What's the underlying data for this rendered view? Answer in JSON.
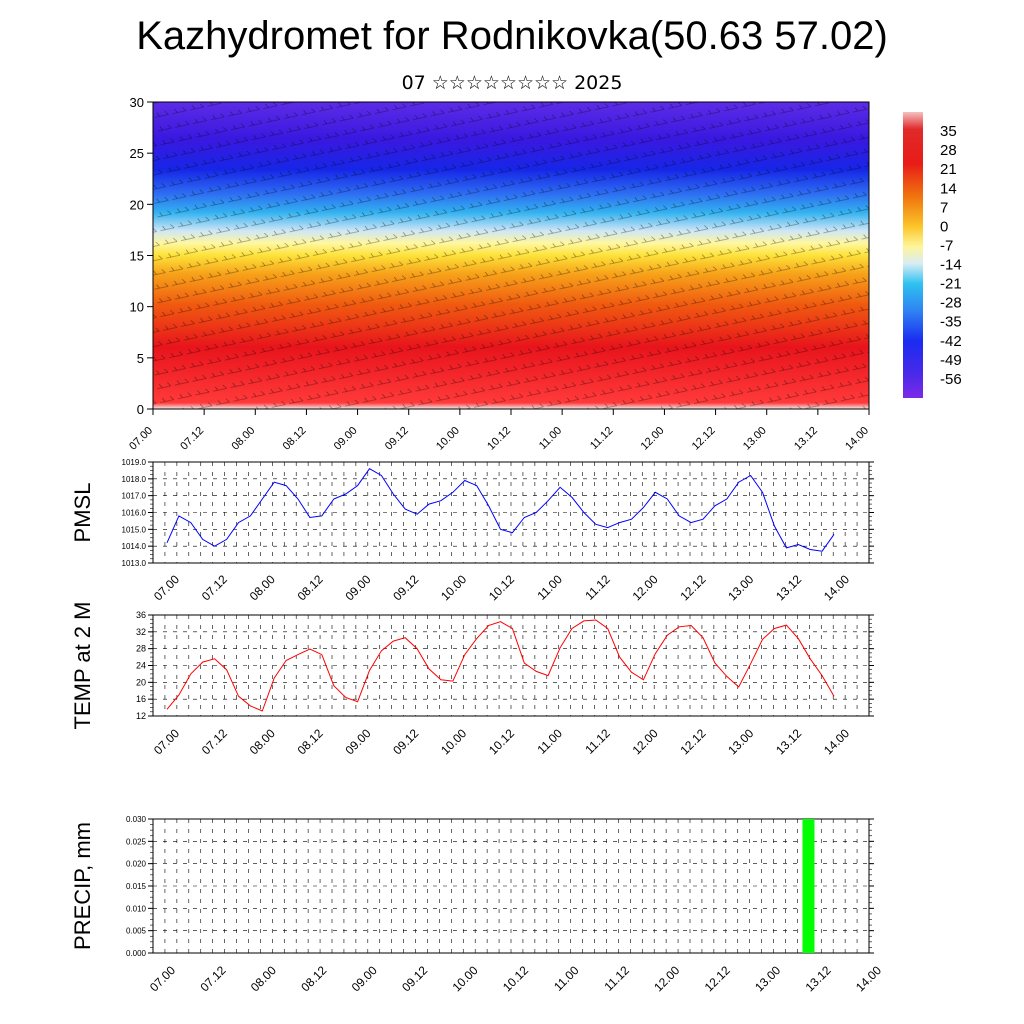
{
  "header": {
    "title": "Kazhydromet for Rodnikovka(50.63 57.02)",
    "subtitle": "07 ☆☆☆☆☆☆☆☆ 2025"
  },
  "colors": {
    "pmsl_line": "#0000ff",
    "temp_line": "#ff0000",
    "precip_bar": "#00ff00",
    "section_warm": "#e8141c",
    "section_cold": "#2b17e6"
  },
  "chart_data": [
    {
      "type": "heatmap",
      "title": "",
      "ylim": [
        0,
        30
      ],
      "yticks": [
        "0",
        "5",
        "10",
        "15",
        "20",
        "25",
        "30"
      ],
      "x": [
        "07.00",
        "07.12",
        "08.00",
        "08.12",
        "09.00",
        "09.12",
        "10.00",
        "10.12",
        "11.00",
        "11.12",
        "12.00",
        "12.12",
        "13.00",
        "13.12",
        "14.00"
      ],
      "colorbar": {
        "labels": [
          "35",
          "28",
          "21",
          "14",
          "7",
          "0",
          "-7",
          "-14",
          "-21",
          "-28",
          "-35",
          "-42",
          "-49",
          "-56"
        ],
        "range": [
          -63,
          42
        ]
      }
    },
    {
      "type": "line",
      "ylabel": "PMSL",
      "ylim": [
        1013,
        1019
      ],
      "yticks": [
        "1013.0",
        "1014.0",
        "1015.0",
        "1016.0",
        "1017.0",
        "1018.0",
        "1019.0"
      ],
      "x_labels": [
        "07.00",
        "07.12",
        "08.00",
        "08.12",
        "09.00",
        "09.12",
        "10.00",
        "10.12",
        "11.00",
        "11.12",
        "12.00",
        "12.12",
        "13.00",
        "13.12",
        "14.00"
      ],
      "values": [
        1014.2,
        1015.8,
        1015.4,
        1014.4,
        1014.0,
        1014.4,
        1015.4,
        1015.8,
        1016.8,
        1017.8,
        1017.6,
        1016.8,
        1015.7,
        1015.8,
        1016.8,
        1017.1,
        1017.6,
        1018.6,
        1018.2,
        1017.1,
        1016.2,
        1015.9,
        1016.5,
        1016.7,
        1017.2,
        1017.9,
        1017.6,
        1016.4,
        1015.0,
        1014.8,
        1015.7,
        1016.0,
        1016.7,
        1017.5,
        1016.9,
        1016.0,
        1015.3,
        1015.1,
        1015.4,
        1015.6,
        1016.3,
        1017.2,
        1016.8,
        1015.8,
        1015.4,
        1015.6,
        1016.4,
        1016.8,
        1017.8,
        1018.2,
        1017.2,
        1015.2,
        1013.9,
        1014.1,
        1013.8,
        1013.7,
        1014.7
      ]
    },
    {
      "type": "line",
      "ylabel": "TEMP at 2 M",
      "ylim": [
        12,
        36
      ],
      "yticks": [
        "12",
        "16",
        "20",
        "24",
        "28",
        "32",
        "36"
      ],
      "x_labels": [
        "07.00",
        "07.12",
        "08.00",
        "08.12",
        "09.00",
        "09.12",
        "10.00",
        "10.12",
        "11.00",
        "11.12",
        "12.00",
        "12.12",
        "13.00",
        "13.12",
        "14.00"
      ],
      "values": [
        13.6,
        17.0,
        22.0,
        24.8,
        25.6,
        23.0,
        16.7,
        14.4,
        13.2,
        21.0,
        25.2,
        26.6,
        27.9,
        26.6,
        19.2,
        16.4,
        15.4,
        22.8,
        27.5,
        29.8,
        30.6,
        28.0,
        23.2,
        20.6,
        20.3,
        26.6,
        30.4,
        33.5,
        34.4,
        32.8,
        24.6,
        22.6,
        21.6,
        28.2,
        32.8,
        34.6,
        34.8,
        32.8,
        26.0,
        22.4,
        20.6,
        26.8,
        31.2,
        33.2,
        33.5,
        30.6,
        24.6,
        21.4,
        18.9,
        24.4,
        30.2,
        32.8,
        33.6,
        30.4,
        25.6,
        21.6,
        16.7
      ]
    },
    {
      "type": "bar",
      "ylabel": "PRECIP, mm",
      "ylim": [
        0,
        0.03
      ],
      "yticks": [
        "0.000",
        "0.005",
        "0.010",
        "0.015",
        "0.020",
        "0.025",
        "0.030"
      ],
      "x_labels": [
        "07.00",
        "07.12",
        "08.00",
        "08.12",
        "09.00",
        "09.12",
        "10.00",
        "10.12",
        "11.00",
        "11.12",
        "12.00",
        "12.12",
        "13.00",
        "13.12",
        "14.00"
      ],
      "bars": [
        {
          "x": "13.12",
          "value": 0.03
        }
      ]
    }
  ]
}
